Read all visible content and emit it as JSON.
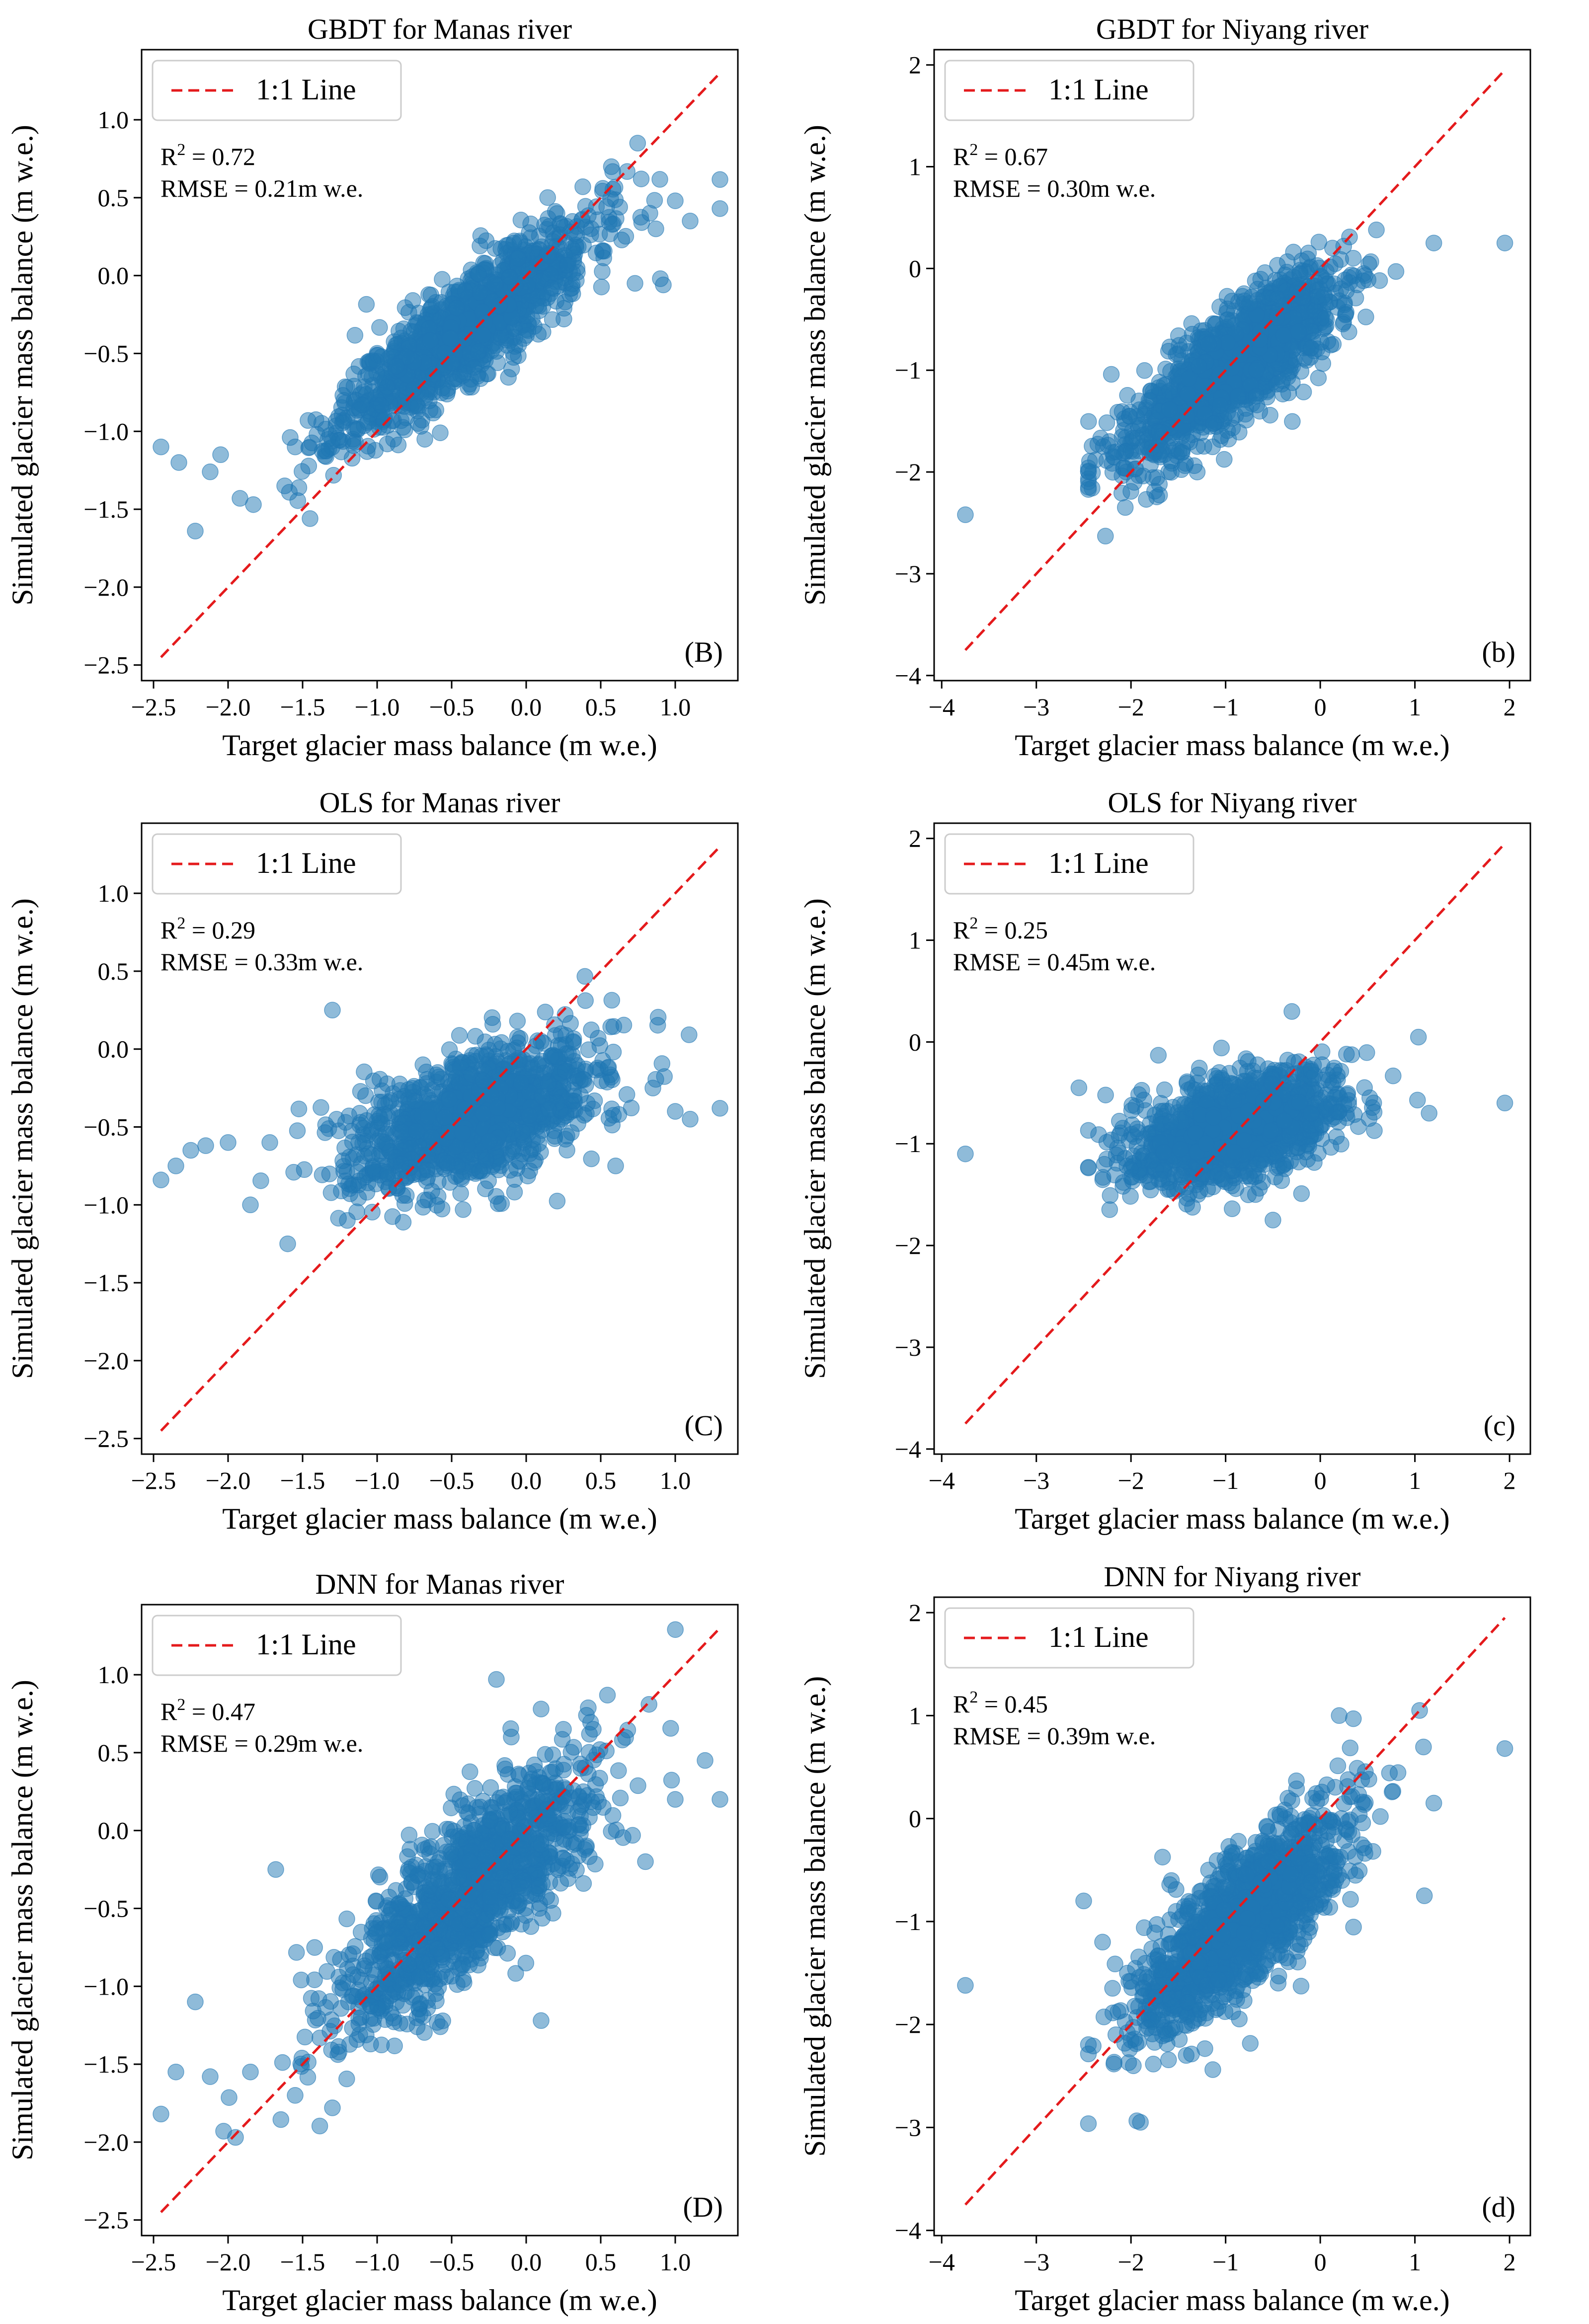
{
  "figure": {
    "xlabel": "Target glacier mass balance (m w.e.)",
    "ylabel": "Simulated glacier mass balance (m w.e.)",
    "legend_label": "1:1 Line",
    "colors": {
      "points": "#1f77b4",
      "line": "#e41a1c"
    }
  },
  "chart_data": [
    {
      "type": "scatter",
      "title": "GBDT for Manas river",
      "panel_label": "(B)",
      "r2_label": "R",
      "r2_exp": "2",
      "r2_value": " = 0.72",
      "rmse_text": "RMSE = 0.21m w.e.",
      "xlabel": "Target glacier mass balance (m w.e.)",
      "ylabel": "Simulated glacier mass balance (m w.e.)",
      "xlim": [
        -2.58,
        1.42
      ],
      "ylim": [
        -2.6,
        1.45
      ],
      "xticks": [
        -2.5,
        -2.0,
        -1.5,
        -1.0,
        -0.5,
        0.0,
        0.5,
        1.0
      ],
      "xtick_labels": [
        "−2.5",
        "−2.0",
        "−1.5",
        "−1.0",
        "−0.5",
        "0.0",
        "0.5",
        "1.0"
      ],
      "yticks": [
        -2.5,
        -2.0,
        -1.5,
        -1.0,
        -0.5,
        0.0,
        0.5,
        1.0
      ],
      "ytick_labels": [
        "−2.5",
        "−2.0",
        "−1.5",
        "−1.0",
        "−0.5",
        "0.0",
        "0.5",
        "1.0"
      ],
      "line_range": [
        -2.45,
        1.3
      ],
      "cloud": {
        "n": 1250,
        "seed": 11,
        "xmean": -0.4,
        "xsd": 0.42,
        "slope": 0.72,
        "intercept": -0.05,
        "noise": 0.17,
        "xmin": -2.45,
        "xmax": 1.3
      },
      "outliers": [
        [
          -2.45,
          -1.1
        ],
        [
          -2.33,
          -1.2
        ],
        [
          -2.22,
          -1.64
        ],
        [
          -2.12,
          -1.26
        ],
        [
          -2.05,
          -1.15
        ],
        [
          -1.92,
          -1.43
        ],
        [
          -1.83,
          -1.47
        ],
        [
          -1.62,
          -1.35
        ],
        [
          -1.45,
          -1.56
        ],
        [
          0.73,
          -0.05
        ],
        [
          0.83,
          0.4
        ],
        [
          0.9,
          -0.02
        ],
        [
          1.0,
          0.48
        ],
        [
          1.1,
          0.35
        ],
        [
          1.3,
          0.43
        ],
        [
          0.92,
          -0.06
        ],
        [
          -1.55,
          -1.1
        ]
      ]
    },
    {
      "type": "scatter",
      "title": "GBDT for Niyang river",
      "panel_label": "(b)",
      "r2_label": "R",
      "r2_exp": "2",
      "r2_value": " = 0.67",
      "rmse_text": "RMSE = 0.30m w.e.",
      "xlabel": "Target glacier mass balance (m w.e.)",
      "ylabel": "Simulated glacier mass balance (m w.e.)",
      "xlim": [
        -4.08,
        2.22
      ],
      "ylim": [
        -4.05,
        2.15
      ],
      "xticks": [
        -4,
        -3,
        -2,
        -1,
        0,
        1,
        2
      ],
      "xtick_labels": [
        "−4",
        "−3",
        "−2",
        "−1",
        "0",
        "1",
        "2"
      ],
      "yticks": [
        -4,
        -3,
        -2,
        -1,
        0,
        1,
        2
      ],
      "ytick_labels": [
        "−4",
        "−3",
        "−2",
        "−1",
        "0",
        "1",
        "2"
      ],
      "line_range": [
        -3.75,
        1.95
      ],
      "cloud": {
        "n": 1400,
        "seed": 22,
        "xmean": -0.9,
        "xsd": 0.55,
        "slope": 0.67,
        "intercept": -0.33,
        "noise": 0.27,
        "xmin": -2.45,
        "xmax": 1.2
      },
      "outliers": [
        [
          -3.75,
          -2.42
        ],
        [
          -2.27,
          -2.63
        ],
        [
          -2.05,
          -2.0
        ],
        [
          1.95,
          0.25
        ],
        [
          1.2,
          0.25
        ],
        [
          0.8,
          -0.03
        ],
        [
          -1.95,
          -1.97
        ],
        [
          -1.3,
          -2.0
        ]
      ]
    },
    {
      "type": "scatter",
      "title": "OLS for Manas river",
      "panel_label": "(C)",
      "r2_label": "R",
      "r2_exp": "2",
      "r2_value": " = 0.29",
      "rmse_text": "RMSE = 0.33m w.e.",
      "xlabel": "Target glacier mass balance (m w.e.)",
      "ylabel": "Simulated glacier mass balance (m w.e.)",
      "xlim": [
        -2.58,
        1.42
      ],
      "ylim": [
        -2.6,
        1.45
      ],
      "xticks": [
        -2.5,
        -2.0,
        -1.5,
        -1.0,
        -0.5,
        0.0,
        0.5,
        1.0
      ],
      "xtick_labels": [
        "−2.5",
        "−2.0",
        "−1.5",
        "−1.0",
        "−0.5",
        "0.0",
        "0.5",
        "1.0"
      ],
      "yticks": [
        -2.5,
        -2.0,
        -1.5,
        -1.0,
        -0.5,
        0.0,
        0.5,
        1.0
      ],
      "ytick_labels": [
        "−2.5",
        "−2.0",
        "−1.5",
        "−1.0",
        "−0.5",
        "0.0",
        "0.5",
        "1.0"
      ],
      "line_range": [
        -2.45,
        1.3
      ],
      "cloud": {
        "n": 1250,
        "seed": 33,
        "xmean": -0.35,
        "xsd": 0.4,
        "slope": 0.3,
        "intercept": -0.32,
        "noise": 0.2,
        "xmin": -2.45,
        "xmax": 1.3
      },
      "outliers": [
        [
          -2.45,
          -0.84
        ],
        [
          -2.35,
          -0.75
        ],
        [
          -2.25,
          -0.65
        ],
        [
          -2.15,
          -0.62
        ],
        [
          -2.0,
          -0.6
        ],
        [
          -1.85,
          -1.0
        ],
        [
          -1.72,
          -0.6
        ],
        [
          -1.6,
          -1.25
        ],
        [
          -1.3,
          0.25
        ],
        [
          1.0,
          -0.4
        ],
        [
          1.1,
          -0.45
        ],
        [
          1.3,
          -0.38
        ],
        [
          0.85,
          -0.25
        ],
        [
          0.6,
          -0.75
        ],
        [
          -1.2,
          -1.1
        ]
      ]
    },
    {
      "type": "scatter",
      "title": "OLS for Niyang river",
      "panel_label": "(c)",
      "r2_label": "R",
      "r2_exp": "2",
      "r2_value": " = 0.25",
      "rmse_text": "RMSE = 0.45m w.e.",
      "xlabel": "Target glacier mass balance (m w.e.)",
      "ylabel": "Simulated glacier mass balance (m w.e.)",
      "xlim": [
        -4.08,
        2.22
      ],
      "ylim": [
        -4.05,
        2.15
      ],
      "xticks": [
        -4,
        -3,
        -2,
        -1,
        0,
        1,
        2
      ],
      "xtick_labels": [
        "−4",
        "−3",
        "−2",
        "−1",
        "0",
        "1",
        "2"
      ],
      "yticks": [
        -4,
        -3,
        -2,
        -1,
        0,
        1,
        2
      ],
      "ytick_labels": [
        "−4",
        "−3",
        "−2",
        "−1",
        "0",
        "1",
        "2"
      ],
      "line_range": [
        -3.75,
        1.95
      ],
      "cloud": {
        "n": 1400,
        "seed": 44,
        "xmean": -0.9,
        "xsd": 0.55,
        "slope": 0.25,
        "intercept": -0.62,
        "noise": 0.24,
        "xmin": -2.45,
        "xmax": 1.2
      },
      "outliers": [
        [
          -3.75,
          -1.1
        ],
        [
          1.95,
          -0.6
        ],
        [
          1.15,
          -0.7
        ],
        [
          -2.55,
          -0.45
        ],
        [
          -0.5,
          -1.75
        ],
        [
          -0.3,
          0.3
        ]
      ]
    },
    {
      "type": "scatter",
      "title": "DNN for Manas river",
      "panel_label": "(D)",
      "r2_label": "R",
      "r2_exp": "2",
      "r2_value": " = 0.47",
      "rmse_text": "RMSE = 0.29m w.e.",
      "xlabel": "Target glacier mass balance (m w.e.)",
      "ylabel": "Simulated glacier mass balance (m w.e.)",
      "xlim": [
        -2.58,
        1.42
      ],
      "ylim": [
        -2.6,
        1.45
      ],
      "xticks": [
        -2.5,
        -2.0,
        -1.5,
        -1.0,
        -0.5,
        0.0,
        0.5,
        1.0
      ],
      "xtick_labels": [
        "−2.5",
        "−2.0",
        "−1.5",
        "−1.0",
        "−0.5",
        "0.0",
        "0.5",
        "1.0"
      ],
      "yticks": [
        -2.5,
        -2.0,
        -1.5,
        -1.0,
        -0.5,
        0.0,
        0.5,
        1.0
      ],
      "ytick_labels": [
        "−2.5",
        "−2.0",
        "−1.5",
        "−1.0",
        "−0.5",
        "0.0",
        "0.5",
        "1.0"
      ],
      "line_range": [
        -2.45,
        1.3
      ],
      "cloud": {
        "n": 1250,
        "seed": 55,
        "xmean": -0.4,
        "xsd": 0.42,
        "slope": 0.75,
        "intercept": -0.12,
        "noise": 0.25,
        "xmin": -2.45,
        "xmax": 1.3
      },
      "outliers": [
        [
          -2.45,
          -1.82
        ],
        [
          -2.35,
          -1.55
        ],
        [
          -2.22,
          -1.1
        ],
        [
          -2.12,
          -1.58
        ],
        [
          -2.03,
          -1.93
        ],
        [
          -1.95,
          -1.97
        ],
        [
          -1.85,
          -1.55
        ],
        [
          -1.68,
          -0.25
        ],
        [
          -1.55,
          -1.7
        ],
        [
          -0.2,
          0.97
        ],
        [
          -0.1,
          0.6
        ],
        [
          0.1,
          0.78
        ],
        [
          0.25,
          0.65
        ],
        [
          0.45,
          0.65
        ],
        [
          0.8,
          -0.2
        ],
        [
          1.0,
          0.2
        ],
        [
          1.2,
          0.45
        ],
        [
          1.3,
          0.2
        ],
        [
          0.1,
          -1.22
        ],
        [
          -1.3,
          -1.78
        ]
      ]
    },
    {
      "type": "scatter",
      "title": "DNN for Niyang river",
      "panel_label": "(d)",
      "r2_label": "R",
      "r2_exp": "2",
      "r2_value": " = 0.45",
      "rmse_text": "RMSE = 0.39m w.e.",
      "xlabel": "Target glacier mass balance (m w.e.)",
      "ylabel": "Simulated glacier mass balance (m w.e.)",
      "xlim": [
        -4.08,
        2.22
      ],
      "ylim": [
        -4.05,
        2.15
      ],
      "xticks": [
        -4,
        -3,
        -2,
        -1,
        0,
        1,
        2
      ],
      "xtick_labels": [
        "−4",
        "−3",
        "−2",
        "−1",
        "0",
        "1",
        "2"
      ],
      "yticks": [
        -4,
        -3,
        -2,
        -1,
        0,
        1,
        2
      ],
      "ytick_labels": [
        "−4",
        "−3",
        "−2",
        "−1",
        "0",
        "1",
        "2"
      ],
      "line_range": [
        -3.75,
        1.95
      ],
      "cloud": {
        "n": 1400,
        "seed": 66,
        "xmean": -0.85,
        "xsd": 0.55,
        "slope": 0.72,
        "intercept": -0.42,
        "noise": 0.33,
        "xmin": -2.45,
        "xmax": 1.2
      },
      "outliers": [
        [
          -3.75,
          -1.62
        ],
        [
          -1.9,
          -2.95
        ],
        [
          1.95,
          0.68
        ],
        [
          1.05,
          1.05
        ],
        [
          1.2,
          0.15
        ],
        [
          1.1,
          -0.75
        ],
        [
          0.2,
          1.0
        ],
        [
          0.35,
          0.97
        ],
        [
          -2.5,
          -0.8
        ],
        [
          -2.3,
          -1.2
        ]
      ]
    }
  ]
}
